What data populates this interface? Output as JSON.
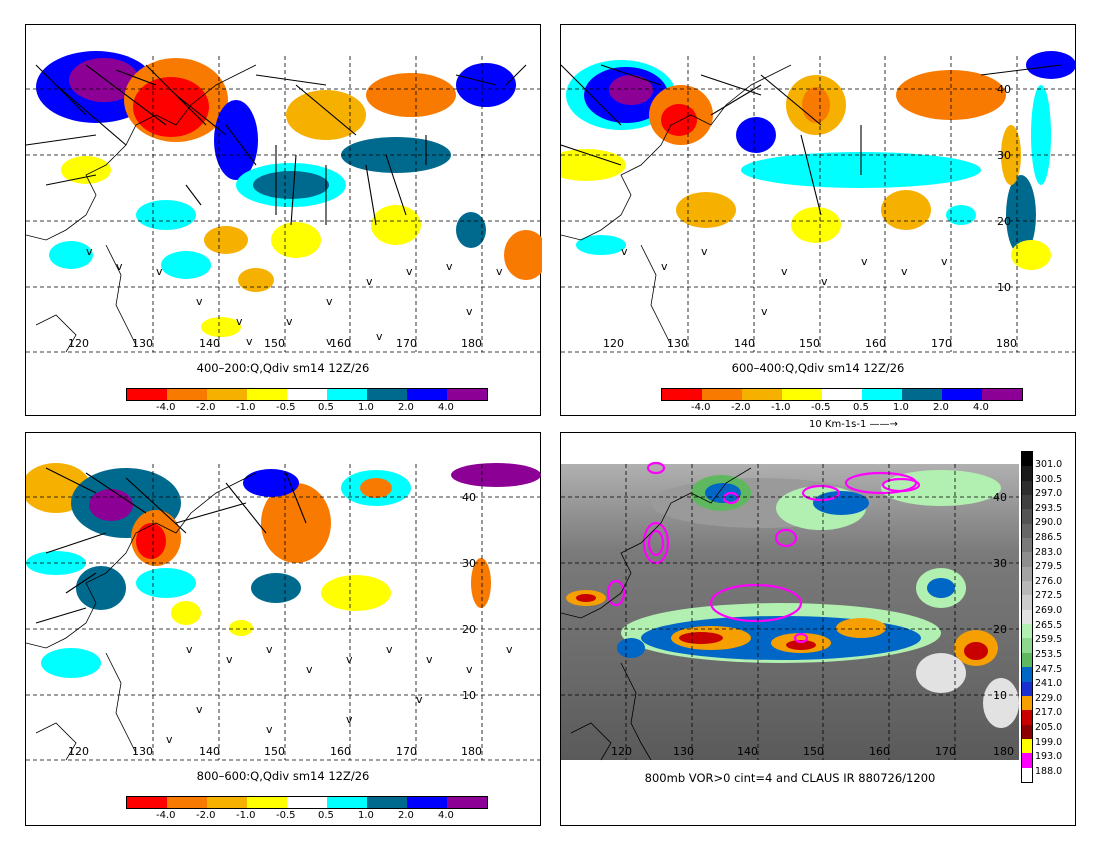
{
  "colors": {
    "field": [
      "#ff0000",
      "#f97a00",
      "#f5b000",
      "#ffff00",
      "#ffffff",
      "#00ffff",
      "#006a8e",
      "#0000ff",
      "#8c0096"
    ],
    "vor_contour": "#ff00ff"
  },
  "panels": [
    {
      "id": "p1",
      "caption": "400–200:Q,Qdiv sm14 12Z/26",
      "lat_labels": [],
      "lon_labels": [
        "120",
        "130",
        "140",
        "150",
        "160",
        "170",
        "180"
      ],
      "colorbar": {
        "labels": [
          "-4.0",
          "-2.0",
          "-1.0",
          "-0.5",
          "0.5",
          "1.0",
          "2.0",
          "4.0"
        ]
      }
    },
    {
      "id": "p2",
      "caption": "600–400:Q,Qdiv sm14 12Z/26",
      "lat_labels": [
        "40",
        "30",
        "20",
        "10"
      ],
      "lon_labels": [
        "120",
        "130",
        "140",
        "150",
        "160",
        "170",
        "180"
      ],
      "colorbar": {
        "labels": [
          "-4.0",
          "-2.0",
          "-1.0",
          "-0.5",
          "0.5",
          "1.0",
          "2.0",
          "4.0"
        ]
      },
      "vector_ref": "10 Km-1s-1"
    },
    {
      "id": "p3",
      "caption": "800–600:Q,Qdiv sm14 12Z/26",
      "lat_labels": [
        "40",
        "30",
        "20",
        "10"
      ],
      "lon_labels": [
        "120",
        "130",
        "140",
        "150",
        "160",
        "170",
        "180"
      ],
      "colorbar": {
        "labels": [
          "-4.0",
          "-2.0",
          "-1.0",
          "-0.5",
          "0.5",
          "1.0",
          "2.0",
          "4.0"
        ]
      }
    },
    {
      "id": "p4",
      "caption": "800mb VOR>0 cint=4 and CLAUS IR 880726/1200",
      "lat_labels": [
        "40",
        "30",
        "20",
        "10"
      ],
      "lon_labels": [
        "120",
        "130",
        "140",
        "150",
        "160",
        "170",
        "180"
      ],
      "ir_scale": {
        "labels": [
          "301.0",
          "300.5",
          "297.0",
          "293.5",
          "290.0",
          "286.5",
          "283.0",
          "279.5",
          "276.0",
          "272.5",
          "269.0",
          "265.5",
          "259.5",
          "253.5",
          "247.5",
          "241.0",
          "229.0",
          "217.0",
          "205.0",
          "199.0",
          "193.0",
          "188.0"
        ],
        "colors": [
          "#000000",
          "#1a1a1a",
          "#2e2e2e",
          "#404040",
          "#535353",
          "#666666",
          "#7a7a7a",
          "#8e8e8e",
          "#a3a3a3",
          "#b8b8b8",
          "#cccccc",
          "#e2e2e2",
          "#b2f0b2",
          "#8ed88e",
          "#5fb85f",
          "#0067c6",
          "#1a2fd0",
          "#f5a000",
          "#c80000",
          "#8b0000",
          "#ffff00",
          "#ff00ff",
          "#ffffff"
        ]
      }
    }
  ]
}
